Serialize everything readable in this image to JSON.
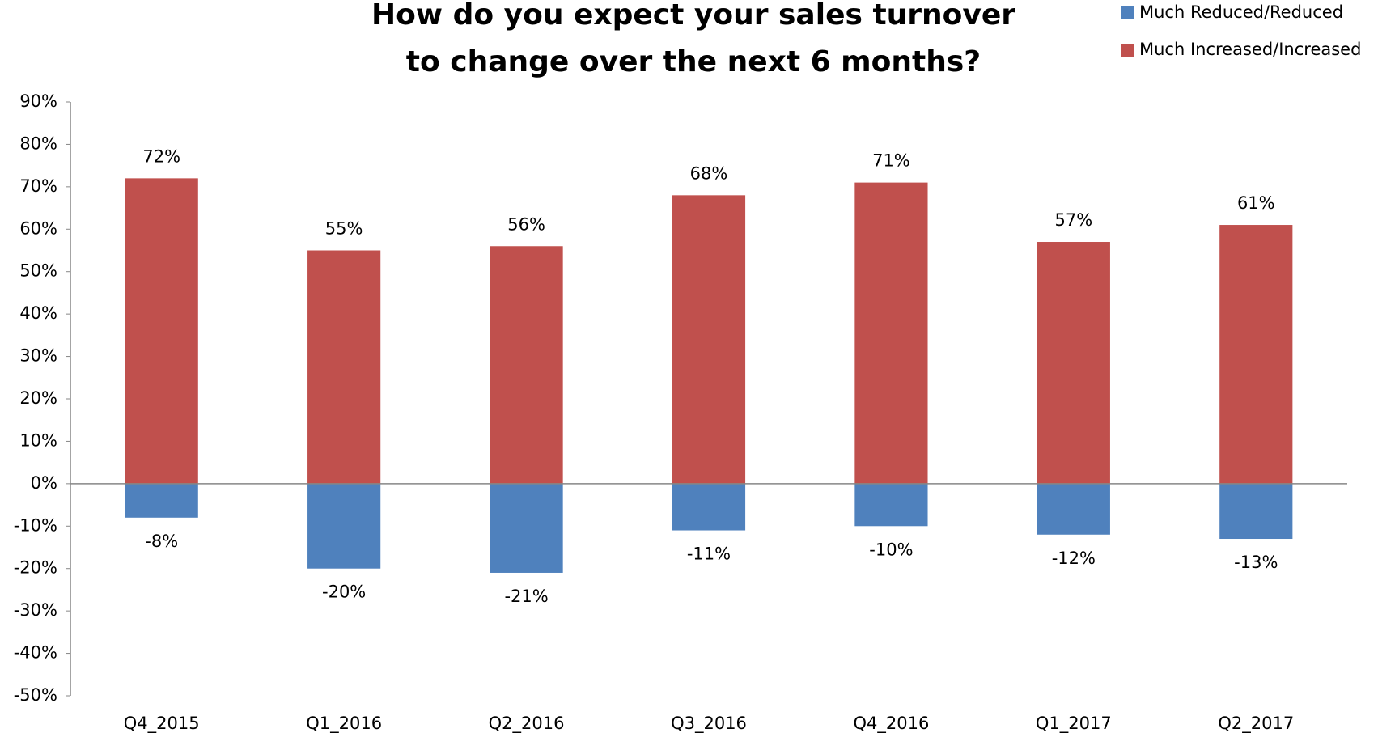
{
  "chart_data": {
    "type": "bar",
    "title": "How do you expect your sales turnover to change over the next 6 months?",
    "categories": [
      "Q4_2015",
      "Q1_2016",
      "Q2_2016",
      "Q3_2016",
      "Q4_2016",
      "Q1_2017",
      "Q2_2017"
    ],
    "series": [
      {
        "name": "Much Reduced/Reduced",
        "color": "#4f81bd",
        "values": [
          -8,
          -20,
          -21,
          -11,
          -10,
          -12,
          -13
        ],
        "value_labels": [
          "-8%",
          "-20%",
          "-21%",
          "-11%",
          "-10%",
          "-12%",
          "-13%"
        ]
      },
      {
        "name": "Much Increased/Increased",
        "color": "#c0504d",
        "values": [
          72,
          55,
          56,
          68,
          71,
          57,
          61
        ],
        "value_labels": [
          "72%",
          "55%",
          "56%",
          "68%",
          "71%",
          "57%",
          "61%"
        ]
      }
    ],
    "ylim": [
      -50,
      90
    ],
    "yticks": [
      {
        "value": -50,
        "label": "-50%"
      },
      {
        "value": -40,
        "label": "-40%"
      },
      {
        "value": -30,
        "label": "-30%"
      },
      {
        "value": -20,
        "label": "-20%"
      },
      {
        "value": -10,
        "label": "-10%"
      },
      {
        "value": 0,
        "label": "0%"
      },
      {
        "value": 10,
        "label": "10%"
      },
      {
        "value": 20,
        "label": "20%"
      },
      {
        "value": 30,
        "label": "30%"
      },
      {
        "value": 40,
        "label": "40%"
      },
      {
        "value": 50,
        "label": "50%"
      },
      {
        "value": 60,
        "label": "60%"
      },
      {
        "value": 70,
        "label": "70%"
      },
      {
        "value": 80,
        "label": "80%"
      },
      {
        "value": 90,
        "label": "90%"
      }
    ],
    "grid": false,
    "legend": "top-right"
  }
}
